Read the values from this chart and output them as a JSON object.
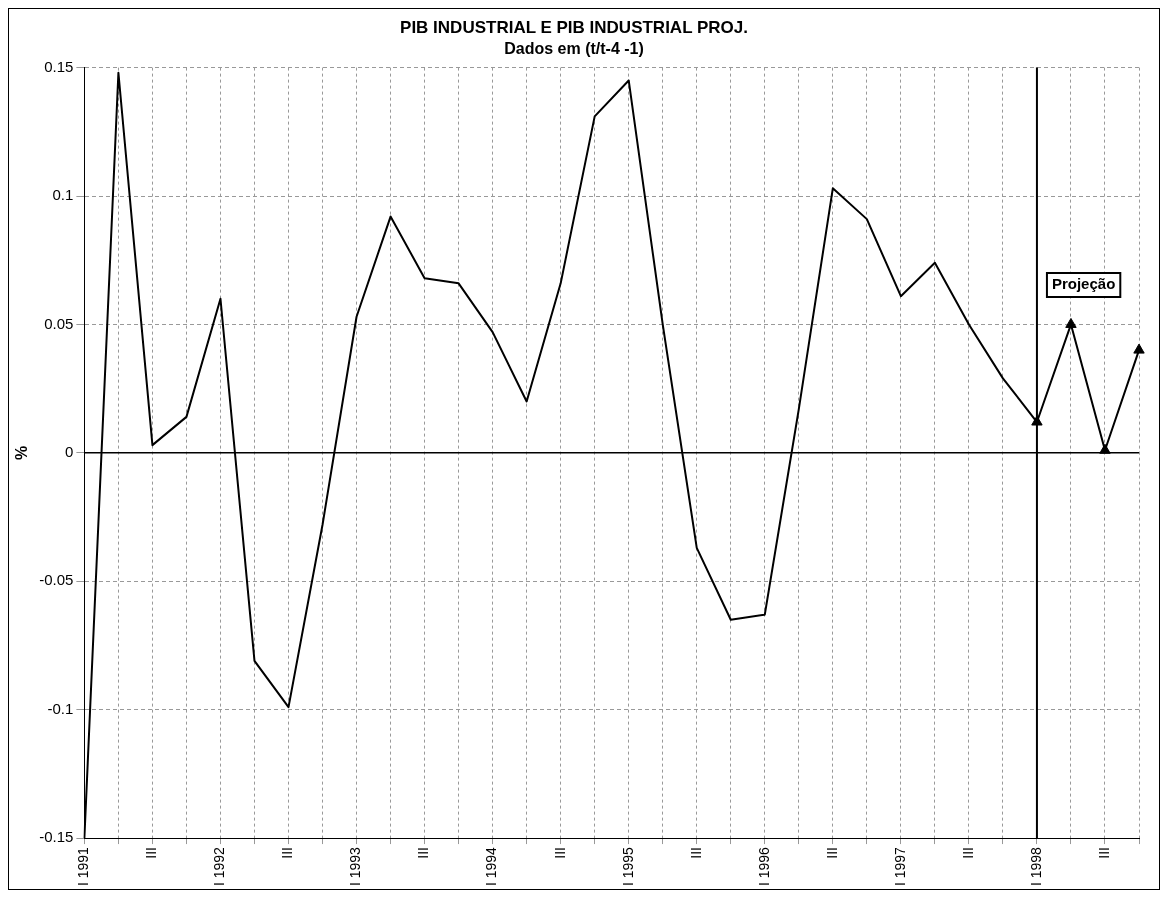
{
  "chart_data": {
    "type": "line",
    "title": "PIB INDUSTRIAL E PIB INDUSTRIAL PROJ.",
    "subtitle": "Dados em (t/t-4 -1)",
    "ylabel": "%",
    "categories": [
      "I 1991",
      null,
      "III",
      null,
      "I 1992",
      null,
      "III",
      null,
      "I 1993",
      null,
      "III",
      null,
      "I 1994",
      null,
      "III",
      null,
      "I 1995",
      null,
      "III",
      null,
      "I 1996",
      null,
      "III",
      null,
      "I 1997",
      null,
      "III",
      null,
      "I 1998",
      null,
      "III",
      null
    ],
    "series": [
      {
        "color": "#000000",
        "marker": "none",
        "values": [
          -0.15,
          0.148,
          0.003,
          0.014,
          0.06,
          -0.081,
          -0.099,
          -0.028,
          0.053,
          0.092,
          0.068,
          0.066,
          0.047,
          0.02,
          0.066,
          0.131,
          0.145,
          0.05,
          -0.037,
          -0.065,
          -0.063,
          0.017,
          0.103,
          0.091,
          0.061,
          0.074,
          0.05,
          0.029,
          0.012,
          null,
          null,
          null
        ]
      },
      {
        "color": "#000000",
        "marker": "triangle",
        "values": [
          null,
          null,
          null,
          null,
          null,
          null,
          null,
          null,
          null,
          null,
          null,
          null,
          null,
          null,
          null,
          null,
          null,
          null,
          null,
          null,
          null,
          null,
          null,
          null,
          null,
          null,
          null,
          null,
          0.012,
          0.05,
          0.001,
          0.04
        ]
      }
    ],
    "ylim": [
      -0.15,
      0.15
    ],
    "yticks": [
      -0.15,
      -0.1,
      -0.05,
      0,
      0.05,
      0.1,
      0.15
    ],
    "grid": true,
    "legend": false,
    "line_style": "solid",
    "ref_lines": [
      {
        "axis": "x",
        "value": "I 1998",
        "label": "Projeção",
        "color": "#000000"
      },
      {
        "axis": "y",
        "value": 0,
        "color": "#000000"
      }
    ]
  }
}
